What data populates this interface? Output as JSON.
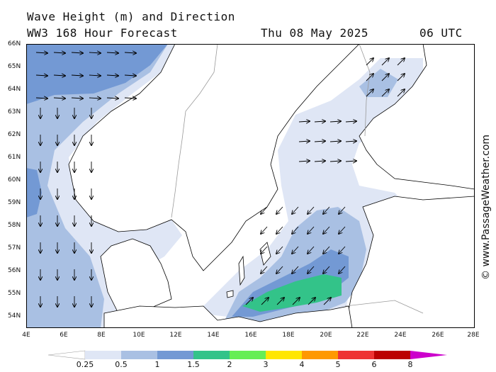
{
  "title": {
    "line1": "Wave Height (m) and Direction",
    "model": "WW3 168 Hour Forecast",
    "date": "Thu 08 May 2025",
    "time": "06 UTC"
  },
  "credit": "© www.PassageWeather.com",
  "axes": {
    "lat_labels": [
      "66N",
      "65N",
      "64N",
      "63N",
      "62N",
      "61N",
      "60N",
      "59N",
      "58N",
      "57N",
      "56N",
      "55N",
      "54N"
    ],
    "lon_labels": [
      "4E",
      "6E",
      "8E",
      "10E",
      "12E",
      "14E",
      "16E",
      "18E",
      "20E",
      "22E",
      "24E",
      "26E",
      "28E"
    ],
    "lat_range": [
      53.75,
      66
    ],
    "lon_range": [
      4,
      28
    ]
  },
  "legend": {
    "labels": [
      "0.25",
      "0.5",
      "1",
      "1.5",
      "2",
      "3",
      "4",
      "5",
      "6",
      "8"
    ],
    "colors": [
      "#ffffff",
      "#dfe6f5",
      "#a9c0e3",
      "#7399d4",
      "#33c389",
      "#66ee55",
      "#ffe600",
      "#ff9900",
      "#ee3333",
      "#bb0000",
      "#cc00cc"
    ]
  },
  "colors": {
    "land": "#ffffff",
    "coast": "#000000",
    "border": "#999999",
    "wave_lt025": "#ffffff",
    "wave_025_05": "#dfe6f5",
    "wave_05_1": "#a9c0e3",
    "wave_1_15": "#7399d4",
    "wave_15_2": "#33c389"
  }
}
